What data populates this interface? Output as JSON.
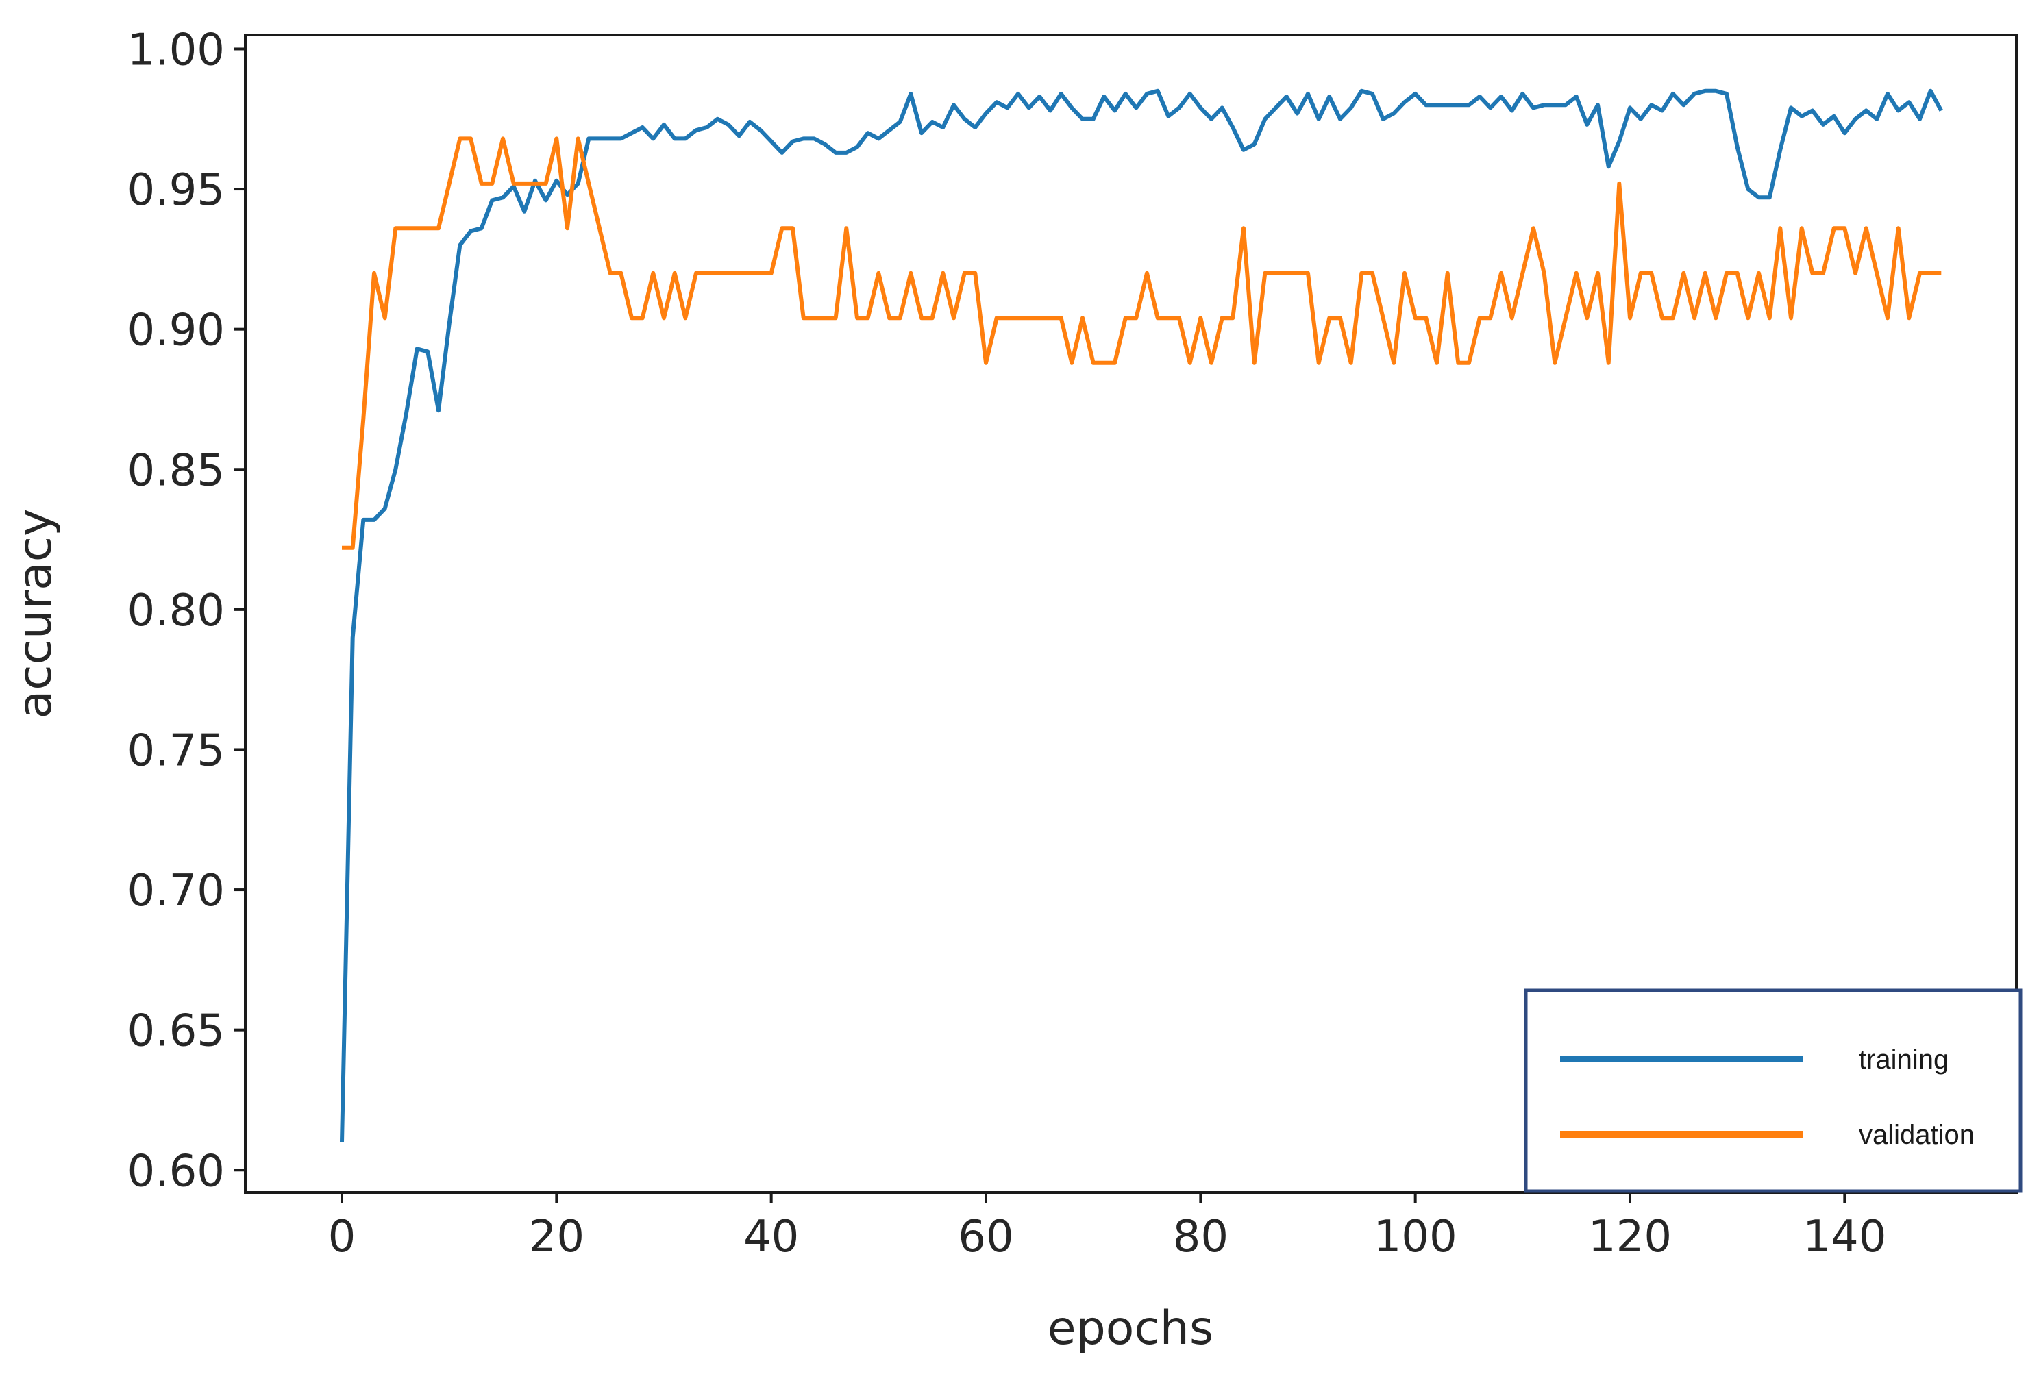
{
  "chart_data": {
    "type": "line",
    "xlabel": "epochs",
    "ylabel": "accuracy",
    "xlim": [
      -9,
      156
    ],
    "ylim": [
      0.592,
      1.005
    ],
    "xticks": [
      0,
      20,
      40,
      60,
      80,
      100,
      120,
      140
    ],
    "xtick_labels": [
      "0",
      "20",
      "40",
      "60",
      "80",
      "100",
      "120",
      "140"
    ],
    "yticks": [
      0.6,
      0.65,
      0.7,
      0.75,
      0.8,
      0.85,
      0.9,
      0.95,
      1.0
    ],
    "ytick_labels": [
      "0.60",
      "0.65",
      "0.70",
      "0.75",
      "0.80",
      "0.85",
      "0.90",
      "0.95",
      "1.00"
    ],
    "grid": false,
    "legend": {
      "position": "lower-right",
      "entries": [
        "training",
        "validation"
      ]
    },
    "series": [
      {
        "name": "training",
        "color": "#1f77b4",
        "values": [
          0.61,
          0.79,
          0.832,
          0.832,
          0.836,
          0.85,
          0.87,
          0.893,
          0.892,
          0.871,
          0.902,
          0.93,
          0.935,
          0.936,
          0.946,
          0.947,
          0.951,
          0.942,
          0.953,
          0.946,
          0.953,
          0.948,
          0.952,
          0.968,
          0.968,
          0.968,
          0.968,
          0.97,
          0.972,
          0.968,
          0.973,
          0.968,
          0.968,
          0.971,
          0.972,
          0.975,
          0.973,
          0.969,
          0.974,
          0.971,
          0.967,
          0.963,
          0.967,
          0.968,
          0.968,
          0.966,
          0.963,
          0.963,
          0.965,
          0.97,
          0.968,
          0.971,
          0.974,
          0.984,
          0.97,
          0.974,
          0.972,
          0.98,
          0.975,
          0.972,
          0.977,
          0.981,
          0.979,
          0.984,
          0.979,
          0.983,
          0.978,
          0.984,
          0.979,
          0.975,
          0.975,
          0.983,
          0.978,
          0.984,
          0.979,
          0.984,
          0.985,
          0.976,
          0.979,
          0.984,
          0.979,
          0.975,
          0.979,
          0.972,
          0.964,
          0.966,
          0.975,
          0.979,
          0.983,
          0.977,
          0.984,
          0.975,
          0.983,
          0.975,
          0.979,
          0.985,
          0.984,
          0.975,
          0.977,
          0.981,
          0.984,
          0.98,
          0.98,
          0.98,
          0.98,
          0.98,
          0.983,
          0.979,
          0.983,
          0.978,
          0.984,
          0.979,
          0.98,
          0.98,
          0.98,
          0.983,
          0.973,
          0.98,
          0.958,
          0.967,
          0.979,
          0.975,
          0.98,
          0.978,
          0.984,
          0.98,
          0.984,
          0.985,
          0.985,
          0.984,
          0.965,
          0.95,
          0.947,
          0.947,
          0.964,
          0.979,
          0.976,
          0.978,
          0.973,
          0.976,
          0.97,
          0.975,
          0.978,
          0.975,
          0.984,
          0.978,
          0.981,
          0.975,
          0.985,
          0.978
        ]
      },
      {
        "name": "validation",
        "color": "#ff7f0e",
        "values": [
          0.822,
          0.822,
          0.868,
          0.92,
          0.904,
          0.936,
          0.936,
          0.936,
          0.936,
          0.936,
          0.952,
          0.968,
          0.968,
          0.952,
          0.952,
          0.968,
          0.952,
          0.952,
          0.952,
          0.952,
          0.968,
          0.936,
          0.968,
          0.952,
          0.936,
          0.92,
          0.92,
          0.904,
          0.904,
          0.92,
          0.904,
          0.92,
          0.904,
          0.92,
          0.92,
          0.92,
          0.92,
          0.92,
          0.92,
          0.92,
          0.92,
          0.936,
          0.936,
          0.904,
          0.904,
          0.904,
          0.904,
          0.936,
          0.904,
          0.904,
          0.92,
          0.904,
          0.904,
          0.92,
          0.904,
          0.904,
          0.92,
          0.904,
          0.92,
          0.92,
          0.888,
          0.904,
          0.904,
          0.904,
          0.904,
          0.904,
          0.904,
          0.904,
          0.888,
          0.904,
          0.888,
          0.888,
          0.888,
          0.904,
          0.904,
          0.92,
          0.904,
          0.904,
          0.904,
          0.888,
          0.904,
          0.888,
          0.904,
          0.904,
          0.936,
          0.888,
          0.92,
          0.92,
          0.92,
          0.92,
          0.92,
          0.888,
          0.904,
          0.904,
          0.888,
          0.92,
          0.92,
          0.904,
          0.888,
          0.92,
          0.904,
          0.904,
          0.888,
          0.92,
          0.888,
          0.888,
          0.904,
          0.904,
          0.92,
          0.904,
          0.92,
          0.936,
          0.92,
          0.888,
          0.904,
          0.92,
          0.904,
          0.92,
          0.888,
          0.952,
          0.904,
          0.92,
          0.92,
          0.904,
          0.904,
          0.92,
          0.904,
          0.92,
          0.904,
          0.92,
          0.92,
          0.904,
          0.92,
          0.904,
          0.936,
          0.904,
          0.936,
          0.92,
          0.92,
          0.936,
          0.936,
          0.92,
          0.936,
          0.92,
          0.904,
          0.936,
          0.904,
          0.92,
          0.92,
          0.92
        ]
      }
    ]
  }
}
